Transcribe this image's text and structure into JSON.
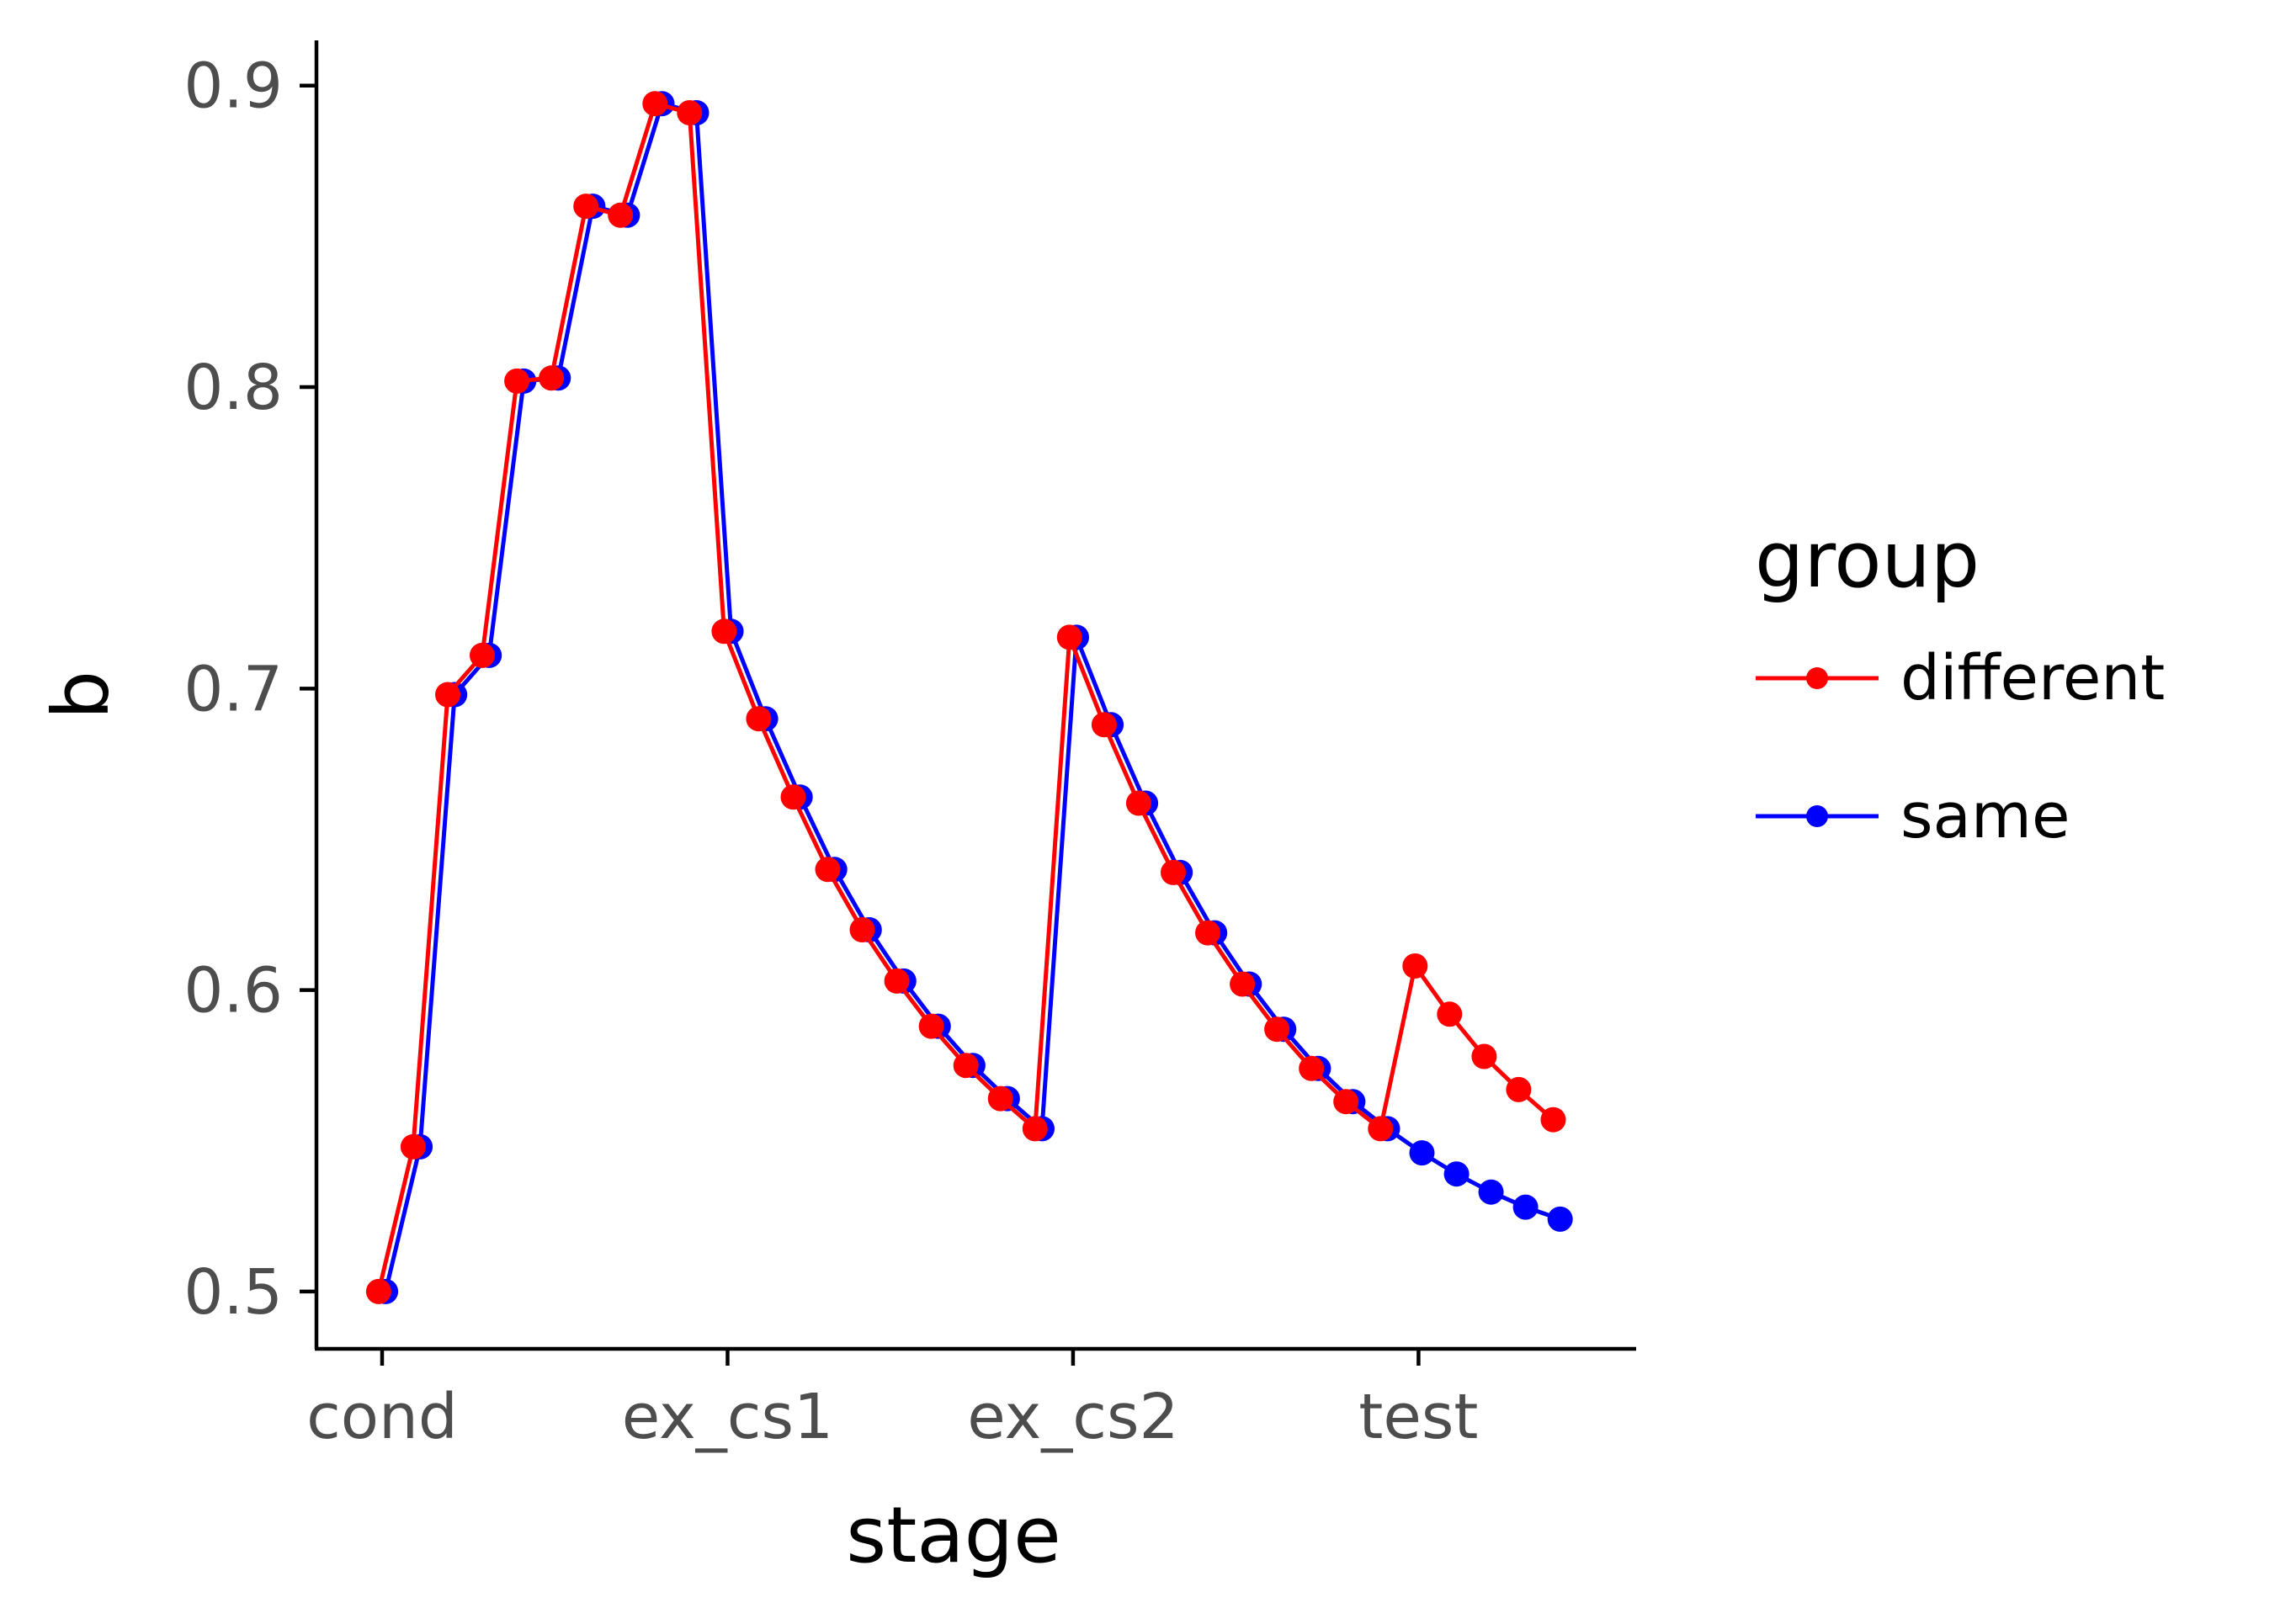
{
  "chart_data": {
    "type": "line",
    "xlabel": "stage",
    "ylabel": "b",
    "x_tick_labels": [
      "cond",
      "ex_cs1",
      "ex_cs2",
      "test"
    ],
    "x_tick_positions": [
      0,
      10,
      20,
      30
    ],
    "xlim": [
      -1.9,
      36.3
    ],
    "y_ticks": [
      0.5,
      0.6,
      0.7,
      0.8,
      0.9
    ],
    "y_tick_labels": [
      "0.5",
      "0.6",
      "0.7",
      "0.8",
      "0.9"
    ],
    "ylim": [
      0.481,
      0.915
    ],
    "grid": false,
    "legend": {
      "title": "group",
      "placement": "right"
    },
    "series": [
      {
        "name": "same",
        "color": "#0000ff",
        "x_offset": 0.1,
        "x": [
          0,
          1,
          2,
          3,
          4,
          5,
          6,
          7,
          8,
          9,
          10,
          11,
          12,
          13,
          14,
          15,
          16,
          17,
          18,
          19,
          20,
          21,
          22,
          23,
          24,
          25,
          26,
          27,
          28,
          29,
          30,
          31,
          32,
          33,
          34
        ],
        "values": [
          0.5,
          0.548,
          0.698,
          0.711,
          0.802,
          0.803,
          0.86,
          0.857,
          0.894,
          0.891,
          0.719,
          0.69,
          0.664,
          0.64,
          0.62,
          0.603,
          0.588,
          0.575,
          0.564,
          0.554,
          0.717,
          0.688,
          0.662,
          0.639,
          0.619,
          0.602,
          0.587,
          0.574,
          0.563,
          0.554,
          0.546,
          0.539,
          0.533,
          0.528,
          0.524
        ]
      },
      {
        "name": "different",
        "color": "#ff0000",
        "x_offset": -0.1,
        "x": [
          0,
          1,
          2,
          3,
          4,
          5,
          6,
          7,
          8,
          9,
          10,
          11,
          12,
          13,
          14,
          15,
          16,
          17,
          18,
          19,
          20,
          21,
          22,
          23,
          24,
          25,
          26,
          27,
          28,
          29,
          30,
          31,
          32,
          33,
          34
        ],
        "values": [
          0.5,
          0.548,
          0.698,
          0.711,
          0.802,
          0.803,
          0.86,
          0.857,
          0.894,
          0.891,
          0.719,
          0.69,
          0.664,
          0.64,
          0.62,
          0.603,
          0.588,
          0.575,
          0.564,
          0.554,
          0.717,
          0.688,
          0.662,
          0.639,
          0.619,
          0.602,
          0.587,
          0.574,
          0.563,
          0.554,
          0.608,
          0.592,
          0.578,
          0.567,
          0.557
        ]
      }
    ]
  }
}
